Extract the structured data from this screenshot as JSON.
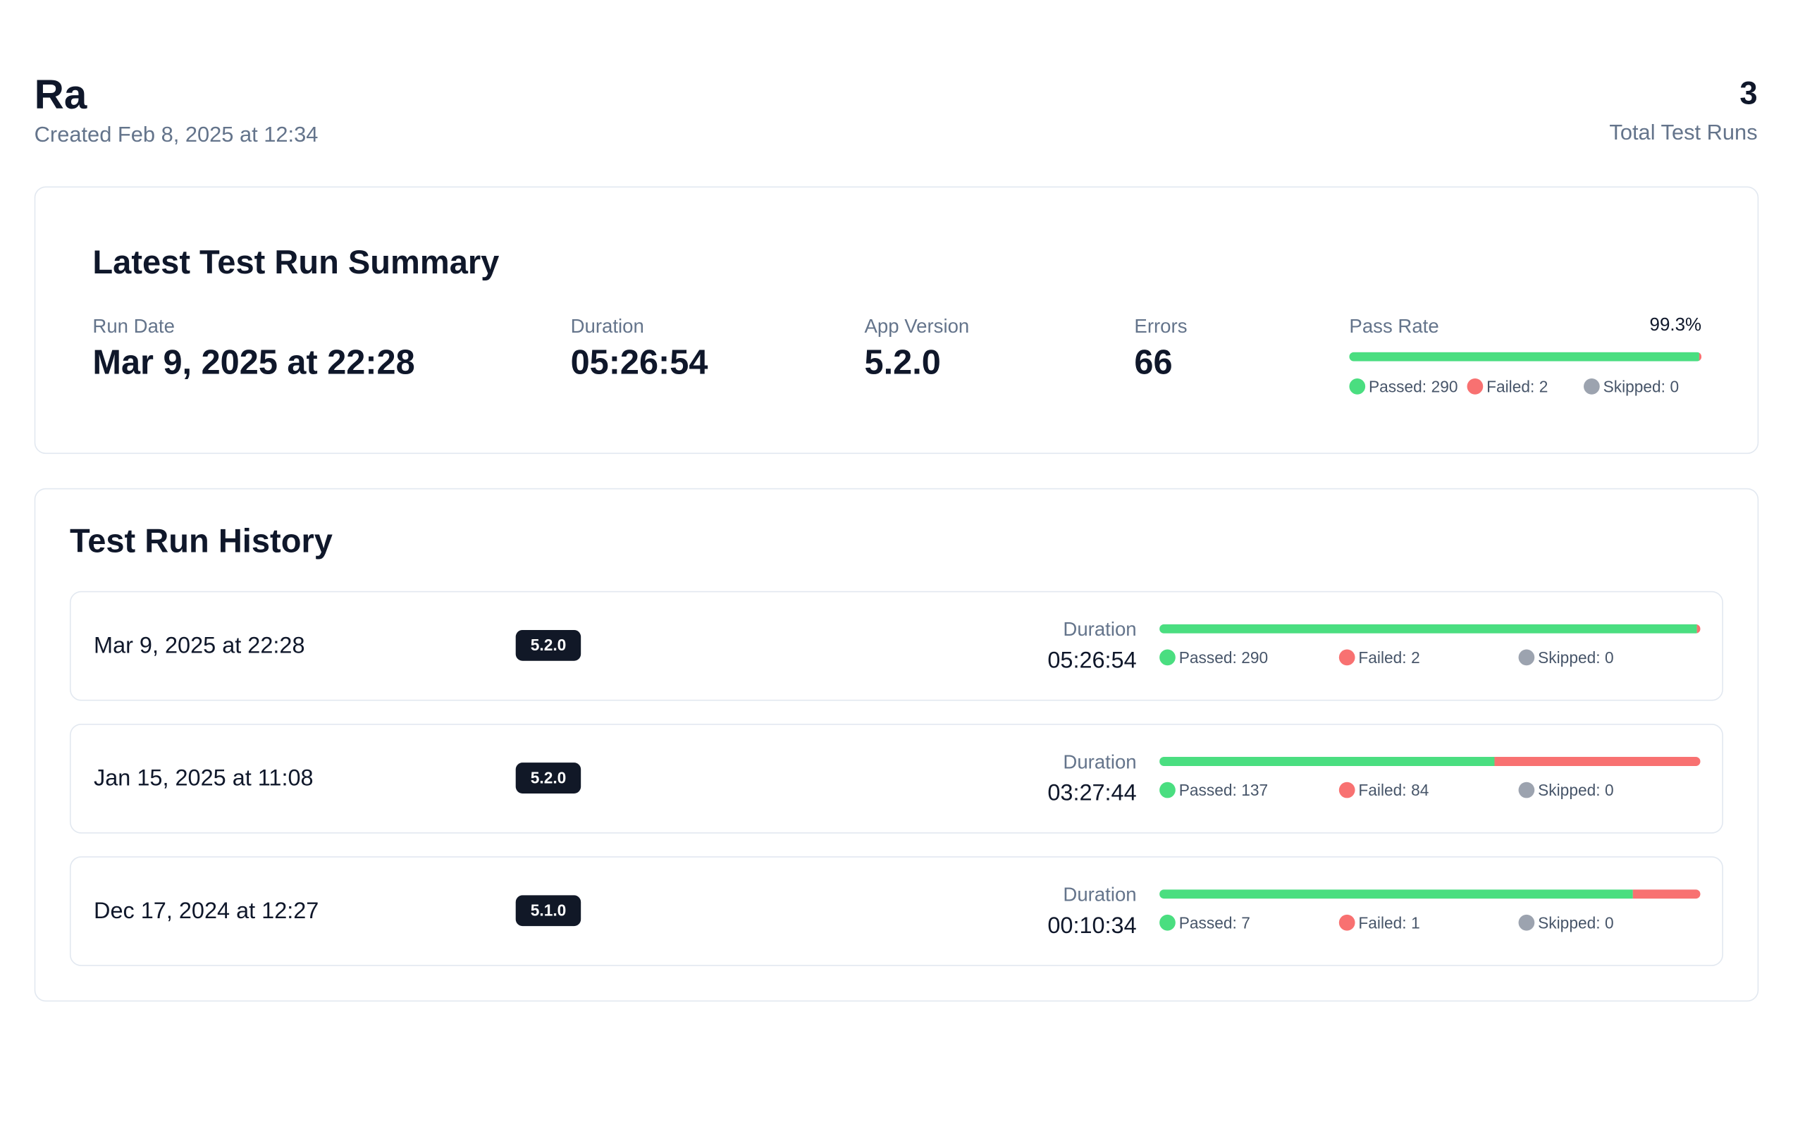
{
  "header": {
    "title": "Ra",
    "subtitle": "Created Feb 8, 2025 at 12:34",
    "total_runs": 3,
    "total_runs_label": "Total Test Runs"
  },
  "summary": {
    "title": "Latest Test Run Summary",
    "fields": [
      {
        "label": "Run Date",
        "value": "Mar 9, 2025 at 22:28"
      },
      {
        "label": "Duration",
        "value": "05:26:54"
      },
      {
        "label": "App Version",
        "value": "5.2.0"
      },
      {
        "label": "Errors",
        "value": 66
      }
    ],
    "pass_rate_label": "Pass Rate",
    "pass_rate": "99.3%",
    "passed": 290,
    "failed": 2,
    "skipped": 0
  },
  "labels": {
    "passed": "Passed:",
    "failed": "Failed:",
    "skipped": "Skipped:"
  },
  "history": {
    "title": "Test Run History",
    "duration_label": "Duration",
    "runs": [
      {
        "date": "Mar 9, 2025 at 22:28",
        "version": "5.2.0",
        "duration": "05:26:54",
        "passed": 290,
        "failed": 2,
        "skipped": 0
      },
      {
        "date": "Jan 15, 2025 at 11:08",
        "version": "5.2.0",
        "duration": "03:27:44",
        "passed": 137,
        "failed": 84,
        "skipped": 0
      },
      {
        "date": "Dec 17, 2024 at 12:27",
        "version": "5.1.0",
        "duration": "00:10:34",
        "passed": 7,
        "failed": 1,
        "skipped": 0
      }
    ]
  }
}
